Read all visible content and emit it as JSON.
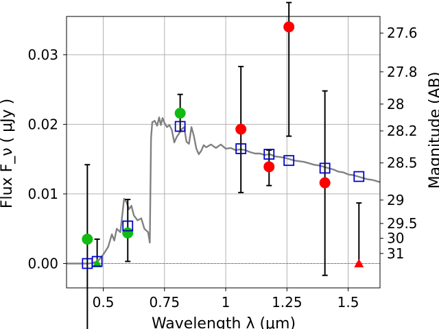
{
  "chart_data": {
    "type": "scatter",
    "title": "",
    "xlabel": "Wavelength  λ (μm)",
    "ylabel": "Flux  F_ν  ( μJy )",
    "y2label": "Magnitude (AB)",
    "xlim": [
      0.35,
      1.63
    ],
    "ylim": [
      -0.0035,
      0.0355
    ],
    "xticks": [
      {
        "value": 0.5,
        "label": "0.5"
      },
      {
        "value": 0.75,
        "label": "0.75"
      },
      {
        "value": 1.0,
        "label": "1"
      },
      {
        "value": 1.25,
        "label": "1.25"
      },
      {
        "value": 1.5,
        "label": "1.5"
      }
    ],
    "yticks": [
      {
        "value": 0.0,
        "label": "0.00"
      },
      {
        "value": 0.01,
        "label": "0.01"
      },
      {
        "value": 0.02,
        "label": "0.02"
      },
      {
        "value": 0.03,
        "label": "0.03"
      }
    ],
    "y2ticks": [
      {
        "mag": 27.6,
        "label": "27.6"
      },
      {
        "mag": 27.8,
        "label": "27.8"
      },
      {
        "mag": 28.0,
        "label": "28"
      },
      {
        "mag": 28.2,
        "label": "28.2"
      },
      {
        "mag": 28.5,
        "label": "28.5"
      },
      {
        "mag": 29.0,
        "label": "29"
      },
      {
        "mag": 29.5,
        "label": "29.5"
      },
      {
        "mag": 30.0,
        "label": "30"
      },
      {
        "mag": 31.0,
        "label": "31"
      }
    ],
    "grid": true,
    "colors": {
      "green": "#11bb11",
      "red": "#ff0000",
      "model": "#808080",
      "box": "#0000cc",
      "error": "#000000",
      "grid": "#b0b0b0"
    },
    "observations": [
      {
        "x": 0.435,
        "y": 0.0035,
        "err_low": 0.0145,
        "err_high": 0.0107,
        "color": "green",
        "marker": "circle"
      },
      {
        "x": 0.475,
        "y": 0.0,
        "err_low": 0.0,
        "err_high": 0.0035,
        "color": "green",
        "marker": "triangle"
      },
      {
        "x": 0.6,
        "y": 0.0044,
        "err_low": 0.0041,
        "err_high": 0.0048,
        "color": "green",
        "marker": "circle"
      },
      {
        "x": 0.814,
        "y": 0.0216,
        "err_low": 0.0026,
        "err_high": 0.0027,
        "color": "green",
        "marker": "circle"
      },
      {
        "x": 1.062,
        "y": 0.0193,
        "err_low": 0.0091,
        "err_high": 0.009,
        "color": "red",
        "marker": "circle"
      },
      {
        "x": 1.177,
        "y": 0.0139,
        "err_low": 0.0027,
        "err_high": 0.0024,
        "color": "red",
        "marker": "circle"
      },
      {
        "x": 1.258,
        "y": 0.034,
        "err_low": 0.0157,
        "err_high": 0.0035,
        "color": "red",
        "marker": "circle"
      },
      {
        "x": 1.405,
        "y": 0.0116,
        "err_low": 0.0133,
        "err_high": 0.0132,
        "color": "red",
        "marker": "circle"
      },
      {
        "x": 1.544,
        "y": 0.0,
        "err_low": 0.0,
        "err_high": 0.0087,
        "color": "red",
        "marker": "triangle"
      }
    ],
    "model_photometry": [
      {
        "x": 0.435,
        "y": 0.0
      },
      {
        "x": 0.475,
        "y": 0.0003
      },
      {
        "x": 0.6,
        "y": 0.0054
      },
      {
        "x": 0.814,
        "y": 0.0197
      },
      {
        "x": 1.062,
        "y": 0.0165
      },
      {
        "x": 1.177,
        "y": 0.0157
      },
      {
        "x": 1.258,
        "y": 0.0148
      },
      {
        "x": 1.405,
        "y": 0.0137
      },
      {
        "x": 1.544,
        "y": 0.0125
      }
    ],
    "model_sed": [
      [
        0.35,
        0.0
      ],
      [
        0.44,
        0.0
      ],
      [
        0.46,
        0.0001
      ],
      [
        0.48,
        0.0004
      ],
      [
        0.5,
        0.0013
      ],
      [
        0.52,
        0.0024
      ],
      [
        0.535,
        0.0042
      ],
      [
        0.545,
        0.0033
      ],
      [
        0.555,
        0.005
      ],
      [
        0.57,
        0.0045
      ],
      [
        0.585,
        0.0093
      ],
      [
        0.595,
        0.0088
      ],
      [
        0.605,
        0.0078
      ],
      [
        0.615,
        0.0083
      ],
      [
        0.625,
        0.0069
      ],
      [
        0.64,
        0.0062
      ],
      [
        0.655,
        0.0065
      ],
      [
        0.668,
        0.005
      ],
      [
        0.683,
        0.0045
      ],
      [
        0.69,
        0.003
      ],
      [
        0.695,
        0.018
      ],
      [
        0.7,
        0.0203
      ],
      [
        0.71,
        0.0205
      ],
      [
        0.72,
        0.0198
      ],
      [
        0.728,
        0.021
      ],
      [
        0.735,
        0.0199
      ],
      [
        0.742,
        0.0209
      ],
      [
        0.75,
        0.0202
      ],
      [
        0.76,
        0.0196
      ],
      [
        0.77,
        0.0199
      ],
      [
        0.78,
        0.0192
      ],
      [
        0.79,
        0.0174
      ],
      [
        0.8,
        0.0182
      ],
      [
        0.81,
        0.0187
      ],
      [
        0.82,
        0.0193
      ],
      [
        0.83,
        0.0196
      ],
      [
        0.84,
        0.0175
      ],
      [
        0.85,
        0.0172
      ],
      [
        0.86,
        0.0196
      ],
      [
        0.87,
        0.0183
      ],
      [
        0.88,
        0.0165
      ],
      [
        0.89,
        0.0157
      ],
      [
        0.9,
        0.0162
      ],
      [
        0.91,
        0.017
      ],
      [
        0.92,
        0.0167
      ],
      [
        0.94,
        0.0171
      ],
      [
        0.96,
        0.0166
      ],
      [
        0.98,
        0.0171
      ],
      [
        1.0,
        0.0165
      ],
      [
        1.02,
        0.0166
      ],
      [
        1.04,
        0.0163
      ],
      [
        1.06,
        0.0164
      ],
      [
        1.08,
        0.0163
      ],
      [
        1.1,
        0.016
      ],
      [
        1.12,
        0.0158
      ],
      [
        1.14,
        0.0158
      ],
      [
        1.16,
        0.0156
      ],
      [
        1.18,
        0.0157
      ],
      [
        1.2,
        0.0154
      ],
      [
        1.22,
        0.0153
      ],
      [
        1.24,
        0.0152
      ],
      [
        1.26,
        0.015
      ],
      [
        1.28,
        0.0148
      ],
      [
        1.3,
        0.0147
      ],
      [
        1.32,
        0.0146
      ],
      [
        1.34,
        0.0144
      ],
      [
        1.36,
        0.0142
      ],
      [
        1.38,
        0.0141
      ],
      [
        1.4,
        0.0139
      ],
      [
        1.42,
        0.0137
      ],
      [
        1.44,
        0.0135
      ],
      [
        1.46,
        0.0132
      ],
      [
        1.48,
        0.0131
      ],
      [
        1.5,
        0.0128
      ],
      [
        1.52,
        0.0127
      ],
      [
        1.54,
        0.0125
      ],
      [
        1.56,
        0.0123
      ],
      [
        1.58,
        0.0121
      ],
      [
        1.6,
        0.012
      ],
      [
        1.63,
        0.0117
      ]
    ]
  }
}
